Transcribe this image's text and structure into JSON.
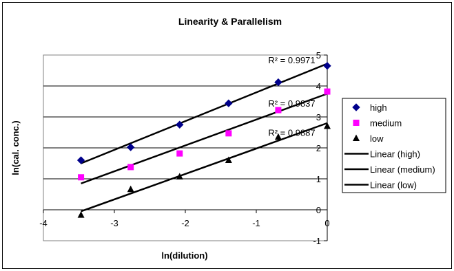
{
  "chart_data": {
    "type": "scatter",
    "title": "Linearity & Parallelism",
    "xlabel": "ln(dilution)",
    "ylabel": "ln(cal. conc.)",
    "xlim": [
      -4,
      0
    ],
    "ylim": [
      -1,
      5
    ],
    "x_ticks": [
      "-4",
      "-3",
      "-2",
      "-1",
      "0"
    ],
    "y_ticks": [
      "-1",
      "0",
      "1",
      "2",
      "3",
      "4",
      "5"
    ],
    "grid": "horizontal",
    "legend_position": "right",
    "series": [
      {
        "name": "high",
        "marker": "diamond",
        "color": "#00008B",
        "x": [
          -3.47,
          -2.77,
          -2.08,
          -1.39,
          -0.69,
          0
        ],
        "y": [
          1.6,
          2.02,
          2.75,
          3.44,
          4.12,
          4.65
        ]
      },
      {
        "name": "medium",
        "marker": "square",
        "color": "#FF00FF",
        "x": [
          -3.47,
          -2.77,
          -2.08,
          -1.39,
          -0.69,
          0
        ],
        "y": [
          1.05,
          1.38,
          1.82,
          2.47,
          3.22,
          3.82
        ]
      },
      {
        "name": "low",
        "marker": "triangle",
        "color": "#000000",
        "x": [
          -3.47,
          -2.77,
          -2.08,
          -1.39,
          -0.69,
          0
        ],
        "y": [
          -0.17,
          0.66,
          1.07,
          1.6,
          2.35,
          2.7
        ]
      }
    ],
    "trendlines": [
      {
        "name": "Linear (high)",
        "x": [
          -3.47,
          0
        ],
        "y": [
          1.5,
          4.72
        ],
        "r2_label": "R² = 0.9971",
        "r2_at": [
          -0.5,
          4.85
        ]
      },
      {
        "name": "Linear (medium)",
        "x": [
          -3.47,
          0
        ],
        "y": [
          0.85,
          3.75
        ],
        "r2_label": "R² = 0.9837",
        "r2_at": [
          -0.5,
          3.45
        ]
      },
      {
        "name": "Linear (low)",
        "x": [
          -3.47,
          0
        ],
        "y": [
          -0.05,
          2.8
        ],
        "r2_label": "R² = 0.9887",
        "r2_at": [
          -0.5,
          2.5
        ]
      }
    ]
  }
}
